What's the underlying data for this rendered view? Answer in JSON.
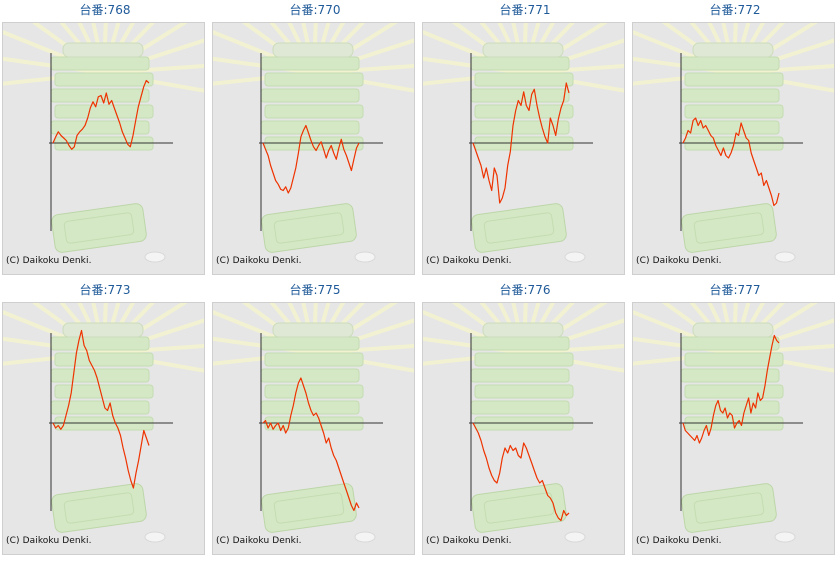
{
  "credit": "(C) Daikoku Denki.",
  "colors": {
    "line": "#ee3300",
    "axis": "#333333",
    "title": "#1f5a99",
    "panel_bg": "#e6e6e6"
  },
  "chart_data": [
    {
      "type": "line",
      "title": "台番:768",
      "y": [
        0,
        5,
        9,
        6,
        4,
        2,
        -2,
        -5,
        -3,
        6,
        9,
        11,
        14,
        20,
        28,
        33,
        29,
        37,
        38,
        32,
        40,
        31,
        34,
        28,
        22,
        16,
        9,
        4,
        -1,
        -3,
        6,
        18,
        29,
        37,
        45,
        50,
        48
      ]
    },
    {
      "type": "line",
      "title": "台番:770",
      "y": [
        0,
        -5,
        -10,
        -18,
        -24,
        -30,
        -33,
        -37,
        -38,
        -35,
        -40,
        -36,
        -28,
        -20,
        -8,
        5,
        10,
        14,
        8,
        2,
        -3,
        -6,
        -2,
        1,
        -5,
        -12,
        -6,
        -2,
        -8,
        -13,
        -4,
        3,
        -5,
        -10,
        -16,
        -22,
        -13,
        -4,
        0
      ]
    },
    {
      "type": "line",
      "title": "台番:771",
      "y": [
        0,
        -6,
        -12,
        -18,
        -28,
        -20,
        -30,
        -38,
        -20,
        -26,
        -48,
        -44,
        -36,
        -18,
        -7,
        14,
        26,
        34,
        30,
        41,
        30,
        26,
        39,
        43,
        30,
        20,
        12,
        5,
        0,
        20,
        14,
        6,
        19,
        28,
        34,
        48,
        40
      ]
    },
    {
      "type": "line",
      "title": "台番:772",
      "y": [
        0,
        4,
        10,
        8,
        18,
        20,
        14,
        18,
        12,
        14,
        10,
        6,
        4,
        -2,
        -6,
        -10,
        -4,
        -10,
        -12,
        -8,
        -2,
        8,
        6,
        16,
        10,
        4,
        2,
        -8,
        -14,
        -20,
        -26,
        -24,
        -34,
        -30,
        -36,
        -42,
        -50,
        -48,
        -40
      ]
    },
    {
      "type": "line",
      "title": "台番:773",
      "y": [
        0,
        -4,
        -2,
        -5,
        -2,
        6,
        14,
        24,
        40,
        56,
        66,
        74,
        62,
        58,
        50,
        46,
        42,
        36,
        28,
        20,
        12,
        10,
        16,
        6,
        0,
        -4,
        -10,
        -20,
        -28,
        -38,
        -46,
        -52,
        -40,
        -30,
        -18,
        -6,
        -12,
        -18
      ]
    },
    {
      "type": "line",
      "title": "台番:775",
      "y": [
        0,
        2,
        -4,
        0,
        -5,
        -2,
        0,
        -6,
        -2,
        -8,
        -4,
        6,
        14,
        24,
        32,
        36,
        30,
        24,
        16,
        10,
        6,
        8,
        4,
        -2,
        -8,
        -16,
        -12,
        -20,
        -26,
        -30,
        -36,
        -42,
        -48,
        -54,
        -60,
        -66,
        -70,
        -64,
        -68
      ]
    },
    {
      "type": "line",
      "title": "台番:776",
      "y": [
        0,
        -4,
        -8,
        -14,
        -22,
        -28,
        -36,
        -42,
        -46,
        -48,
        -40,
        -28,
        -20,
        -24,
        -18,
        -22,
        -20,
        -26,
        -28,
        -16,
        -20,
        -26,
        -32,
        -38,
        -44,
        -48,
        -46,
        -52,
        -58,
        -60,
        -64,
        -72,
        -76,
        -78,
        -70,
        -74,
        -72
      ]
    },
    {
      "type": "line",
      "title": "台番:777",
      "y": [
        0,
        -6,
        -8,
        -10,
        -12,
        -14,
        -10,
        -16,
        -12,
        -6,
        -2,
        -10,
        -4,
        6,
        14,
        18,
        10,
        8,
        12,
        4,
        8,
        6,
        -4,
        0,
        2,
        -2,
        8,
        14,
        20,
        8,
        16,
        12,
        24,
        18,
        20,
        30,
        42,
        52,
        62,
        70,
        66,
        64
      ]
    }
  ]
}
